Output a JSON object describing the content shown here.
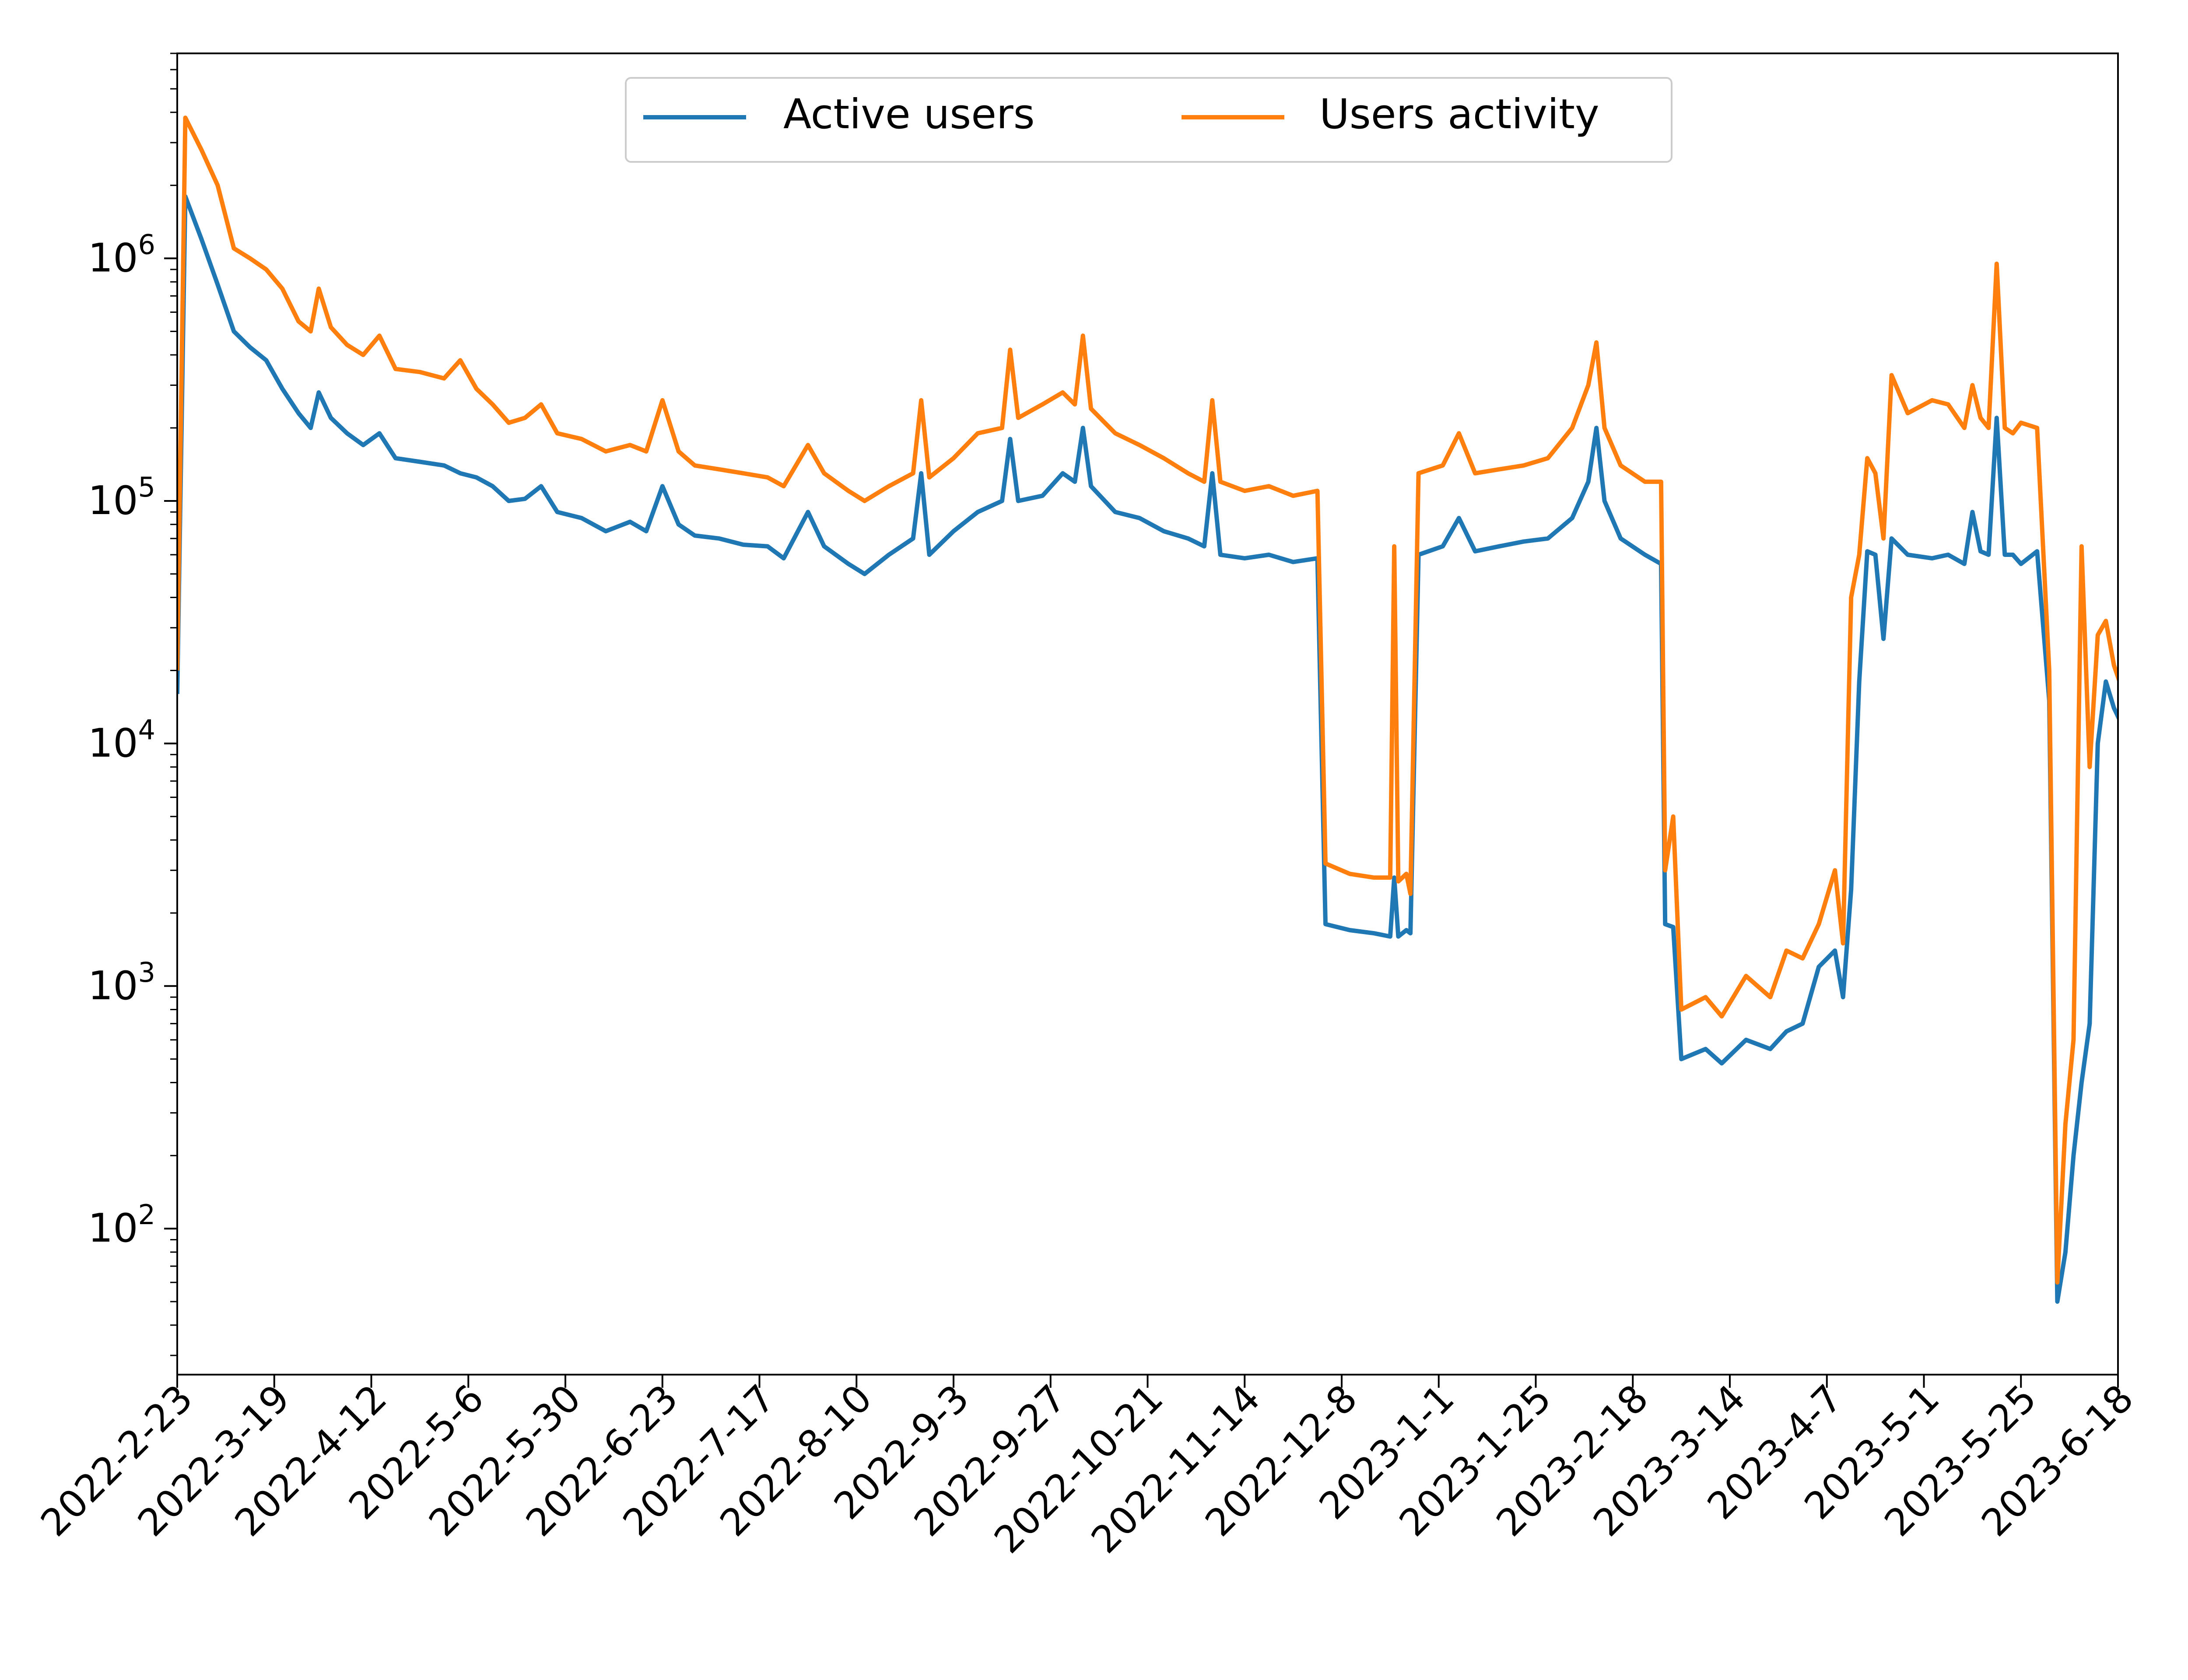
{
  "chart_data": {
    "type": "line",
    "title": "",
    "xlabel": "",
    "ylabel": "",
    "yscale": "log",
    "ylim": [
      25,
      7000000
    ],
    "xlim": [
      "2022-2-23",
      "2023-6-18"
    ],
    "grid": false,
    "legend": {
      "placement": "top-center",
      "ncol": 2
    },
    "x_ticks": [
      "2022-2-23",
      "2022-3-19",
      "2022-4-12",
      "2022-5-6",
      "2022-5-30",
      "2022-6-23",
      "2022-7-17",
      "2022-8-10",
      "2022-9-3",
      "2022-9-27",
      "2022-10-21",
      "2022-11-14",
      "2022-12-8",
      "2023-1-1",
      "2023-1-25",
      "2023-2-18",
      "2023-3-14",
      "2023-4-7",
      "2023-5-1",
      "2023-5-25",
      "2023-6-18"
    ],
    "y_ticks": [
      {
        "value": 100,
        "base": "10",
        "exp": "2"
      },
      {
        "value": 1000,
        "base": "10",
        "exp": "3"
      },
      {
        "value": 10000,
        "base": "10",
        "exp": "4"
      },
      {
        "value": 100000,
        "base": "10",
        "exp": "5"
      },
      {
        "value": 1000000,
        "base": "10",
        "exp": "6"
      }
    ],
    "series": [
      {
        "name": "Active users",
        "color": "#1f77b4",
        "points": [
          [
            "2022-2-23",
            16000
          ],
          [
            "2022-2-25",
            1800000
          ],
          [
            "2022-3-1",
            1200000
          ],
          [
            "2022-3-5",
            780000
          ],
          [
            "2022-3-9",
            500000
          ],
          [
            "2022-3-13",
            430000
          ],
          [
            "2022-3-17",
            380000
          ],
          [
            "2022-3-21",
            290000
          ],
          [
            "2022-3-25",
            230000
          ],
          [
            "2022-3-28",
            200000
          ],
          [
            "2022-3-30",
            280000
          ],
          [
            "2022-4-2",
            220000
          ],
          [
            "2022-4-6",
            190000
          ],
          [
            "2022-4-10",
            170000
          ],
          [
            "2022-4-14",
            190000
          ],
          [
            "2022-4-18",
            150000
          ],
          [
            "2022-4-24",
            145000
          ],
          [
            "2022-4-30",
            140000
          ],
          [
            "2022-5-4",
            130000
          ],
          [
            "2022-5-8",
            125000
          ],
          [
            "2022-5-12",
            115000
          ],
          [
            "2022-5-16",
            100000
          ],
          [
            "2022-5-20",
            102000
          ],
          [
            "2022-5-24",
            115000
          ],
          [
            "2022-5-28",
            90000
          ],
          [
            "2022-6-3",
            85000
          ],
          [
            "2022-6-9",
            75000
          ],
          [
            "2022-6-15",
            82000
          ],
          [
            "2022-6-19",
            75000
          ],
          [
            "2022-6-23",
            115000
          ],
          [
            "2022-6-27",
            80000
          ],
          [
            "2022-7-1",
            72000
          ],
          [
            "2022-7-7",
            70000
          ],
          [
            "2022-7-13",
            66000
          ],
          [
            "2022-7-19",
            65000
          ],
          [
            "2022-7-23",
            58000
          ],
          [
            "2022-7-29",
            90000
          ],
          [
            "2022-8-2",
            65000
          ],
          [
            "2022-8-8",
            55000
          ],
          [
            "2022-8-12",
            50000
          ],
          [
            "2022-8-18",
            60000
          ],
          [
            "2022-8-24",
            70000
          ],
          [
            "2022-8-26",
            130000
          ],
          [
            "2022-8-28",
            60000
          ],
          [
            "2022-9-3",
            75000
          ],
          [
            "2022-9-9",
            90000
          ],
          [
            "2022-9-15",
            100000
          ],
          [
            "2022-9-17",
            180000
          ],
          [
            "2022-9-19",
            100000
          ],
          [
            "2022-9-25",
            105000
          ],
          [
            "2022-9-30",
            130000
          ],
          [
            "2022-10-3",
            120000
          ],
          [
            "2022-10-5",
            200000
          ],
          [
            "2022-10-7",
            115000
          ],
          [
            "2022-10-13",
            90000
          ],
          [
            "2022-10-19",
            85000
          ],
          [
            "2022-10-25",
            75000
          ],
          [
            "2022-10-31",
            70000
          ],
          [
            "2022-11-4",
            65000
          ],
          [
            "2022-11-6",
            130000
          ],
          [
            "2022-11-8",
            60000
          ],
          [
            "2022-11-14",
            58000
          ],
          [
            "2022-11-20",
            60000
          ],
          [
            "2022-11-26",
            56000
          ],
          [
            "2022-12-2",
            58000
          ],
          [
            "2022-12-4",
            1800
          ],
          [
            "2022-12-10",
            1700
          ],
          [
            "2022-12-16",
            1650
          ],
          [
            "2022-12-20",
            1600
          ],
          [
            "2022-12-21",
            2800
          ],
          [
            "2022-12-22",
            1600
          ],
          [
            "2022-12-24",
            1700
          ],
          [
            "2022-12-25",
            1650
          ],
          [
            "2022-12-27",
            60000
          ],
          [
            "2023-1-2",
            65000
          ],
          [
            "2023-1-6",
            85000
          ],
          [
            "2023-1-10",
            62000
          ],
          [
            "2023-1-16",
            65000
          ],
          [
            "2023-1-22",
            68000
          ],
          [
            "2023-1-28",
            70000
          ],
          [
            "2023-2-3",
            85000
          ],
          [
            "2023-2-7",
            120000
          ],
          [
            "2023-2-9",
            200000
          ],
          [
            "2023-2-11",
            100000
          ],
          [
            "2023-2-15",
            70000
          ],
          [
            "2023-2-21",
            60000
          ],
          [
            "2023-2-25",
            55000
          ],
          [
            "2023-2-26",
            1800
          ],
          [
            "2023-2-28",
            1750
          ],
          [
            "2023-3-2",
            500
          ],
          [
            "2023-3-8",
            550
          ],
          [
            "2023-3-12",
            480
          ],
          [
            "2023-3-18",
            600
          ],
          [
            "2023-3-24",
            550
          ],
          [
            "2023-3-28",
            650
          ],
          [
            "2023-4-1",
            700
          ],
          [
            "2023-4-5",
            1200
          ],
          [
            "2023-4-9",
            1400
          ],
          [
            "2023-4-11",
            900
          ],
          [
            "2023-4-13",
            2500
          ],
          [
            "2023-4-15",
            18000
          ],
          [
            "2023-4-17",
            62000
          ],
          [
            "2023-4-19",
            60000
          ],
          [
            "2023-4-21",
            27000
          ],
          [
            "2023-4-23",
            70000
          ],
          [
            "2023-4-27",
            60000
          ],
          [
            "2023-5-3",
            58000
          ],
          [
            "2023-5-7",
            60000
          ],
          [
            "2023-5-11",
            55000
          ],
          [
            "2023-5-13",
            90000
          ],
          [
            "2023-5-15",
            62000
          ],
          [
            "2023-5-17",
            60000
          ],
          [
            "2023-5-19",
            220000
          ],
          [
            "2023-5-21",
            60000
          ],
          [
            "2023-5-23",
            60000
          ],
          [
            "2023-5-25",
            55000
          ],
          [
            "2023-5-29",
            62000
          ],
          [
            "2023-6-1",
            15000
          ],
          [
            "2023-6-3",
            50
          ],
          [
            "2023-6-5",
            80
          ],
          [
            "2023-6-7",
            200
          ],
          [
            "2023-6-9",
            400
          ],
          [
            "2023-6-11",
            700
          ],
          [
            "2023-6-13",
            10000
          ],
          [
            "2023-6-15",
            18000
          ],
          [
            "2023-6-17",
            14000
          ],
          [
            "2023-6-20",
            11000
          ]
        ]
      },
      {
        "name": "Users activity",
        "color": "#ff7f0e",
        "points": [
          [
            "2022-2-23",
            20000
          ],
          [
            "2022-2-25",
            3800000
          ],
          [
            "2022-3-1",
            2800000
          ],
          [
            "2022-3-5",
            2000000
          ],
          [
            "2022-3-9",
            1100000
          ],
          [
            "2022-3-13",
            1000000
          ],
          [
            "2022-3-17",
            900000
          ],
          [
            "2022-3-21",
            750000
          ],
          [
            "2022-3-25",
            550000
          ],
          [
            "2022-3-28",
            500000
          ],
          [
            "2022-3-30",
            750000
          ],
          [
            "2022-4-2",
            520000
          ],
          [
            "2022-4-6",
            440000
          ],
          [
            "2022-4-10",
            400000
          ],
          [
            "2022-4-14",
            480000
          ],
          [
            "2022-4-18",
            350000
          ],
          [
            "2022-4-24",
            340000
          ],
          [
            "2022-4-30",
            320000
          ],
          [
            "2022-5-4",
            380000
          ],
          [
            "2022-5-8",
            290000
          ],
          [
            "2022-5-12",
            250000
          ],
          [
            "2022-5-16",
            210000
          ],
          [
            "2022-5-20",
            220000
          ],
          [
            "2022-5-24",
            250000
          ],
          [
            "2022-5-28",
            190000
          ],
          [
            "2022-6-3",
            180000
          ],
          [
            "2022-6-9",
            160000
          ],
          [
            "2022-6-15",
            170000
          ],
          [
            "2022-6-19",
            160000
          ],
          [
            "2022-6-23",
            260000
          ],
          [
            "2022-6-27",
            160000
          ],
          [
            "2022-7-1",
            140000
          ],
          [
            "2022-7-7",
            135000
          ],
          [
            "2022-7-13",
            130000
          ],
          [
            "2022-7-19",
            125000
          ],
          [
            "2022-7-23",
            115000
          ],
          [
            "2022-7-29",
            170000
          ],
          [
            "2022-8-2",
            130000
          ],
          [
            "2022-8-8",
            110000
          ],
          [
            "2022-8-12",
            100000
          ],
          [
            "2022-8-18",
            115000
          ],
          [
            "2022-8-24",
            130000
          ],
          [
            "2022-8-26",
            260000
          ],
          [
            "2022-8-28",
            125000
          ],
          [
            "2022-9-3",
            150000
          ],
          [
            "2022-9-9",
            190000
          ],
          [
            "2022-9-15",
            200000
          ],
          [
            "2022-9-17",
            420000
          ],
          [
            "2022-9-19",
            220000
          ],
          [
            "2022-9-25",
            250000
          ],
          [
            "2022-9-30",
            280000
          ],
          [
            "2022-10-3",
            250000
          ],
          [
            "2022-10-5",
            480000
          ],
          [
            "2022-10-7",
            240000
          ],
          [
            "2022-10-13",
            190000
          ],
          [
            "2022-10-19",
            170000
          ],
          [
            "2022-10-25",
            150000
          ],
          [
            "2022-10-31",
            130000
          ],
          [
            "2022-11-4",
            120000
          ],
          [
            "2022-11-6",
            260000
          ],
          [
            "2022-11-8",
            120000
          ],
          [
            "2022-11-14",
            110000
          ],
          [
            "2022-11-20",
            115000
          ],
          [
            "2022-11-26",
            105000
          ],
          [
            "2022-12-2",
            110000
          ],
          [
            "2022-12-4",
            3200
          ],
          [
            "2022-12-10",
            2900
          ],
          [
            "2022-12-16",
            2800
          ],
          [
            "2022-12-20",
            2800
          ],
          [
            "2022-12-21",
            65000
          ],
          [
            "2022-12-22",
            2700
          ],
          [
            "2022-12-24",
            2900
          ],
          [
            "2022-12-25",
            2400
          ],
          [
            "2022-12-27",
            130000
          ],
          [
            "2023-1-2",
            140000
          ],
          [
            "2023-1-6",
            190000
          ],
          [
            "2023-1-10",
            130000
          ],
          [
            "2023-1-16",
            135000
          ],
          [
            "2023-1-22",
            140000
          ],
          [
            "2023-1-28",
            150000
          ],
          [
            "2023-2-3",
            200000
          ],
          [
            "2023-2-7",
            300000
          ],
          [
            "2023-2-9",
            450000
          ],
          [
            "2023-2-11",
            200000
          ],
          [
            "2023-2-15",
            140000
          ],
          [
            "2023-2-21",
            120000
          ],
          [
            "2023-2-25",
            120000
          ],
          [
            "2023-2-26",
            3000
          ],
          [
            "2023-2-28",
            5000
          ],
          [
            "2023-3-2",
            800
          ],
          [
            "2023-3-8",
            900
          ],
          [
            "2023-3-12",
            750
          ],
          [
            "2023-3-18",
            1100
          ],
          [
            "2023-3-24",
            900
          ],
          [
            "2023-3-28",
            1400
          ],
          [
            "2023-4-1",
            1300
          ],
          [
            "2023-4-5",
            1800
          ],
          [
            "2023-4-9",
            3000
          ],
          [
            "2023-4-11",
            1500
          ],
          [
            "2023-4-13",
            40000
          ],
          [
            "2023-4-15",
            60000
          ],
          [
            "2023-4-17",
            150000
          ],
          [
            "2023-4-19",
            130000
          ],
          [
            "2023-4-21",
            70000
          ],
          [
            "2023-4-23",
            330000
          ],
          [
            "2023-4-27",
            230000
          ],
          [
            "2023-5-3",
            260000
          ],
          [
            "2023-5-7",
            250000
          ],
          [
            "2023-5-11",
            200000
          ],
          [
            "2023-5-13",
            300000
          ],
          [
            "2023-5-15",
            220000
          ],
          [
            "2023-5-17",
            200000
          ],
          [
            "2023-5-19",
            950000
          ],
          [
            "2023-5-21",
            200000
          ],
          [
            "2023-5-23",
            190000
          ],
          [
            "2023-5-25",
            210000
          ],
          [
            "2023-5-29",
            200000
          ],
          [
            "2023-6-1",
            20000
          ],
          [
            "2023-6-3",
            60
          ],
          [
            "2023-6-5",
            270
          ],
          [
            "2023-6-7",
            600
          ],
          [
            "2023-6-9",
            65000
          ],
          [
            "2023-6-11",
            8000
          ],
          [
            "2023-6-13",
            28000
          ],
          [
            "2023-6-15",
            32000
          ],
          [
            "2023-6-17",
            21000
          ],
          [
            "2023-6-20",
            15000
          ]
        ]
      }
    ]
  }
}
